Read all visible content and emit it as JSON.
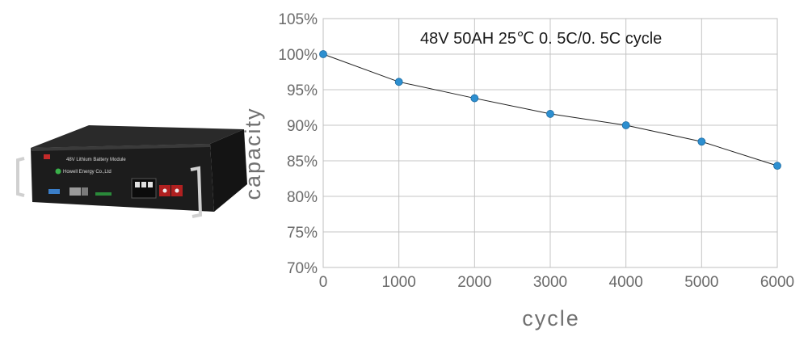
{
  "product": {
    "module_label": "48V Lithium Battery Module",
    "brand": "Howell Energy Co.,Ltd"
  },
  "chart_data": {
    "type": "line",
    "title": "48V 50AH 25℃  0. 5C/0. 5C  cycle",
    "xlabel": "cycle",
    "ylabel": "capacity",
    "x": [
      0,
      1000,
      2000,
      3000,
      4000,
      5000,
      6000
    ],
    "xlim": [
      0,
      6000
    ],
    "ylim": [
      70,
      105
    ],
    "xticks": [
      0,
      1000,
      2000,
      3000,
      4000,
      5000,
      6000
    ],
    "yticks": [
      70,
      75,
      80,
      85,
      90,
      95,
      100,
      105
    ],
    "ytick_suffix": "%",
    "grid": true,
    "series": [
      {
        "values": [
          100,
          96.1,
          93.8,
          91.6,
          90.0,
          87.7,
          84.3
        ],
        "color": "#2d8fd0"
      }
    ]
  }
}
